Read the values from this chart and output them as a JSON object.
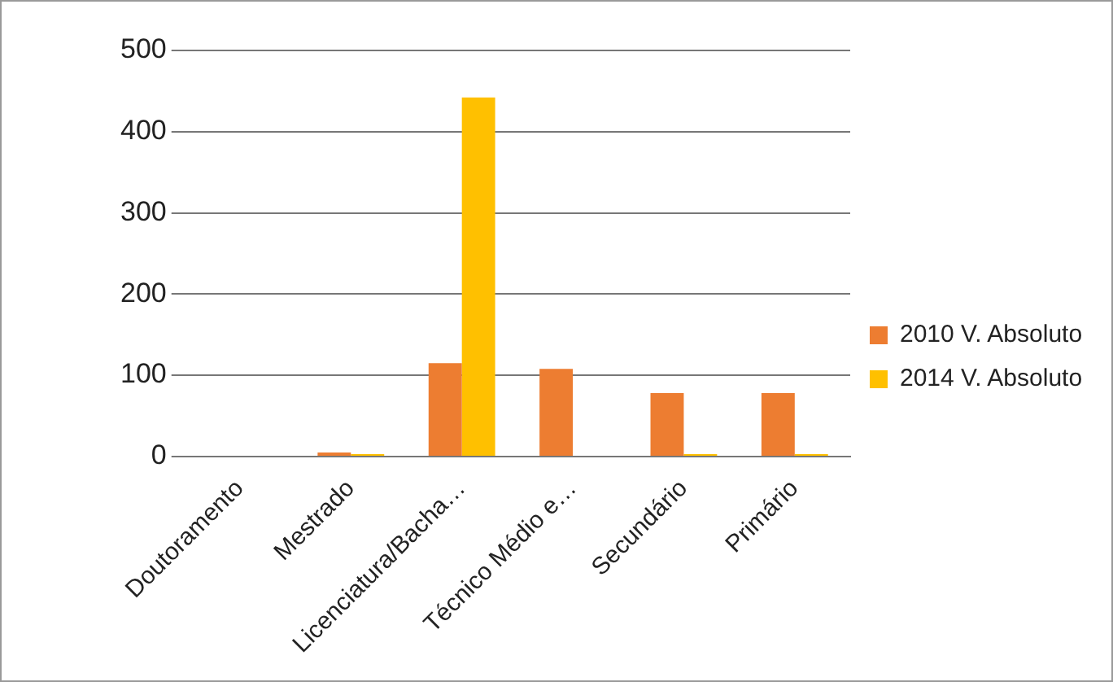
{
  "chart_data": {
    "type": "bar",
    "categories": [
      "Doutoramento",
      "Mestrado",
      "Licenciatura/Bacha…",
      "Técnico Médio e…",
      "Secundário",
      "Primário"
    ],
    "series": [
      {
        "name": "2010 V. Absoluto",
        "color": "#ed7d31",
        "values": [
          0,
          5,
          115,
          108,
          78,
          78
        ]
      },
      {
        "name": "2014 V. Absoluto",
        "color": "#ffc000",
        "values": [
          0,
          3,
          442,
          0,
          3,
          3
        ]
      }
    ],
    "ylim": [
      0,
      500
    ],
    "yticks": [
      0,
      100,
      200,
      300,
      400,
      500
    ],
    "grid": "y",
    "legend": "right"
  }
}
